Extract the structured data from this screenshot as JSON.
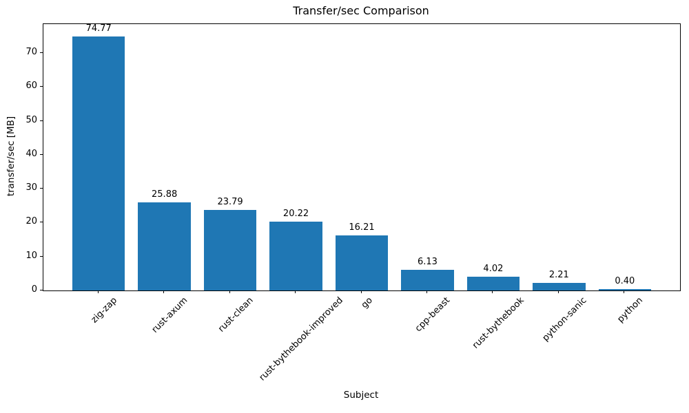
{
  "figure": {
    "background": "#ffffff"
  },
  "chart_data": {
    "type": "bar",
    "title": "Transfer/sec Comparison",
    "xlabel": "Subject",
    "ylabel": "transfer/sec [MB]",
    "categories": [
      "zig-zap",
      "rust-axum",
      "rust-clean",
      "rust-bythebook-improved",
      "go",
      "cpp-beast",
      "rust-bythebook",
      "python-sanic",
      "python"
    ],
    "values": [
      74.77,
      25.88,
      23.79,
      20.22,
      16.21,
      6.13,
      4.02,
      2.21,
      0.4
    ],
    "value_labels": [
      "74.77",
      "25.88",
      "23.79",
      "20.22",
      "16.21",
      "6.13",
      "4.02",
      "2.21",
      "0.40"
    ],
    "yticks": [
      0,
      10,
      20,
      30,
      40,
      50,
      60,
      70
    ],
    "ylim": [
      0,
      78.5
    ],
    "bar_width_fraction": 0.8,
    "bar_color": "#1f77b4",
    "axis_color": "#000000",
    "text_color": "#000000",
    "grid": false,
    "legend": null,
    "x_tick_rotation_deg": 45
  }
}
